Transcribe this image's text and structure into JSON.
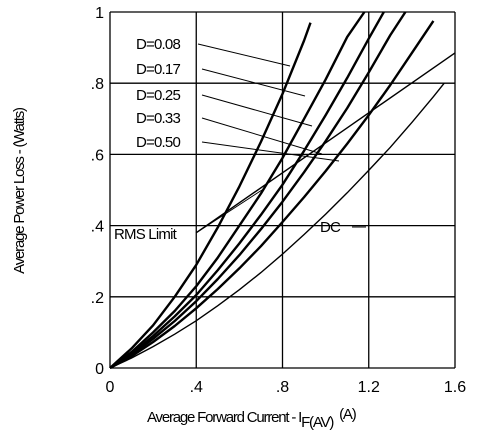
{
  "chart_data": {
    "type": "line",
    "xlabel": "Average Forward Current - I",
    "xlabel_sub": "F(AV)",
    "xlabel_unit": "(A)",
    "ylabel": "Average Power Loss - (Watts)",
    "xlim": [
      0,
      1.6
    ],
    "ylim": [
      0,
      1
    ],
    "grid": true,
    "x_ticks": [
      {
        "v": 0,
        "label": "0"
      },
      {
        "v": 0.4,
        "label": ".4"
      },
      {
        "v": 0.8,
        "label": ".8"
      },
      {
        "v": 1.2,
        "label": "1.2"
      },
      {
        "v": 1.6,
        "label": "1.6"
      }
    ],
    "y_ticks": [
      {
        "v": 0,
        "label": "0"
      },
      {
        "v": 0.2,
        "label": ".2"
      },
      {
        "v": 0.4,
        "label": ".4"
      },
      {
        "v": 0.6,
        "label": ".6"
      },
      {
        "v": 0.8,
        "label": ".8"
      },
      {
        "v": 1,
        "label": "1"
      }
    ],
    "series": [
      {
        "name": "D=0.08",
        "x": [
          0,
          0.1,
          0.2,
          0.3,
          0.4,
          0.5,
          0.6,
          0.7,
          0.8,
          0.9,
          0.93
        ],
        "y": [
          0,
          0.055,
          0.12,
          0.2,
          0.29,
          0.395,
          0.51,
          0.635,
          0.77,
          0.92,
          0.97
        ]
      },
      {
        "name": "D=0.17",
        "x": [
          0,
          0.1,
          0.2,
          0.3,
          0.4,
          0.5,
          0.6,
          0.7,
          0.8,
          0.9,
          1.0,
          1.1,
          1.18
        ],
        "y": [
          0,
          0.045,
          0.1,
          0.16,
          0.23,
          0.31,
          0.4,
          0.49,
          0.59,
          0.7,
          0.81,
          0.93,
          1.0
        ]
      },
      {
        "name": "D=0.25",
        "x": [
          0,
          0.1,
          0.2,
          0.3,
          0.4,
          0.5,
          0.6,
          0.7,
          0.8,
          0.9,
          1.0,
          1.1,
          1.2,
          1.27
        ],
        "y": [
          0,
          0.04,
          0.09,
          0.145,
          0.205,
          0.275,
          0.35,
          0.43,
          0.515,
          0.61,
          0.71,
          0.815,
          0.925,
          1.0
        ]
      },
      {
        "name": "D=0.33",
        "x": [
          0,
          0.1,
          0.2,
          0.3,
          0.4,
          0.5,
          0.6,
          0.7,
          0.8,
          0.9,
          1.0,
          1.1,
          1.2,
          1.3,
          1.37
        ],
        "y": [
          0,
          0.037,
          0.082,
          0.132,
          0.188,
          0.25,
          0.317,
          0.39,
          0.467,
          0.55,
          0.637,
          0.73,
          0.83,
          0.935,
          1.0
        ]
      },
      {
        "name": "D=0.50",
        "x": [
          0,
          0.1,
          0.2,
          0.3,
          0.4,
          0.5,
          0.6,
          0.7,
          0.8,
          0.9,
          1.0,
          1.1,
          1.2,
          1.3,
          1.4,
          1.5
        ],
        "y": [
          0,
          0.033,
          0.073,
          0.118,
          0.168,
          0.222,
          0.28,
          0.342,
          0.41,
          0.48,
          0.553,
          0.63,
          0.71,
          0.795,
          0.885,
          0.975
        ]
      },
      {
        "name": "DC",
        "x": [
          0,
          0.1,
          0.2,
          0.3,
          0.4,
          0.5,
          0.6,
          0.7,
          0.8,
          0.9,
          1.0,
          1.1,
          1.2,
          1.3,
          1.4,
          1.5,
          1.55
        ],
        "y": [
          0,
          0.028,
          0.06,
          0.095,
          0.133,
          0.175,
          0.22,
          0.268,
          0.32,
          0.375,
          0.432,
          0.492,
          0.555,
          0.62,
          0.69,
          0.762,
          0.8
        ]
      }
    ],
    "rms_limit": {
      "label": "RMS Limit",
      "x": [
        0.4,
        1.6
      ],
      "y": [
        0.38,
        0.885
      ]
    },
    "annotations": [
      {
        "text": "D=0.08",
        "series": 0
      },
      {
        "text": "D=0.17",
        "series": 1
      },
      {
        "text": "D=0.25",
        "series": 2
      },
      {
        "text": "D=0.33",
        "series": 3
      },
      {
        "text": "D=0.50",
        "series": 4
      },
      {
        "text": "DC",
        "series": 5
      },
      {
        "text": "RMS Limit",
        "series": -1
      }
    ]
  }
}
